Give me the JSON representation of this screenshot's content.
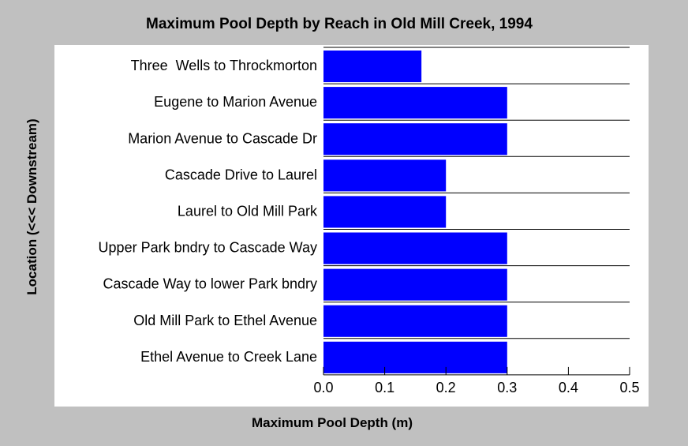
{
  "chart_data": {
    "type": "bar",
    "orientation": "horizontal",
    "title": "Maximum Pool Depth by Reach in Old Mill Creek, 1994",
    "xlabel": "Maximum Pool Depth (m)",
    "ylabel": "Location (<<< Downstream)",
    "xlim": [
      0,
      0.5
    ],
    "xticks": [
      "0.0",
      "0.1",
      "0.2",
      "0.3",
      "0.4",
      "0.5"
    ],
    "categories": [
      "Three  Wells to Throckmorton",
      "Eugene to Marion Avenue",
      "Marion Avenue to Cascade Dr",
      "Cascade Drive to Laurel",
      "Laurel to Old Mill Park",
      "Upper Park bndry to Cascade Way",
      "Cascade Way to lower Park bndry",
      "Old Mill Park to Ethel Avenue",
      "Ethel Avenue to Creek Lane"
    ],
    "values": [
      0.16,
      0.3,
      0.3,
      0.2,
      0.2,
      0.3,
      0.3,
      0.3,
      0.3
    ],
    "bar_color": "#0000ff",
    "grid": false,
    "legend": "none"
  }
}
